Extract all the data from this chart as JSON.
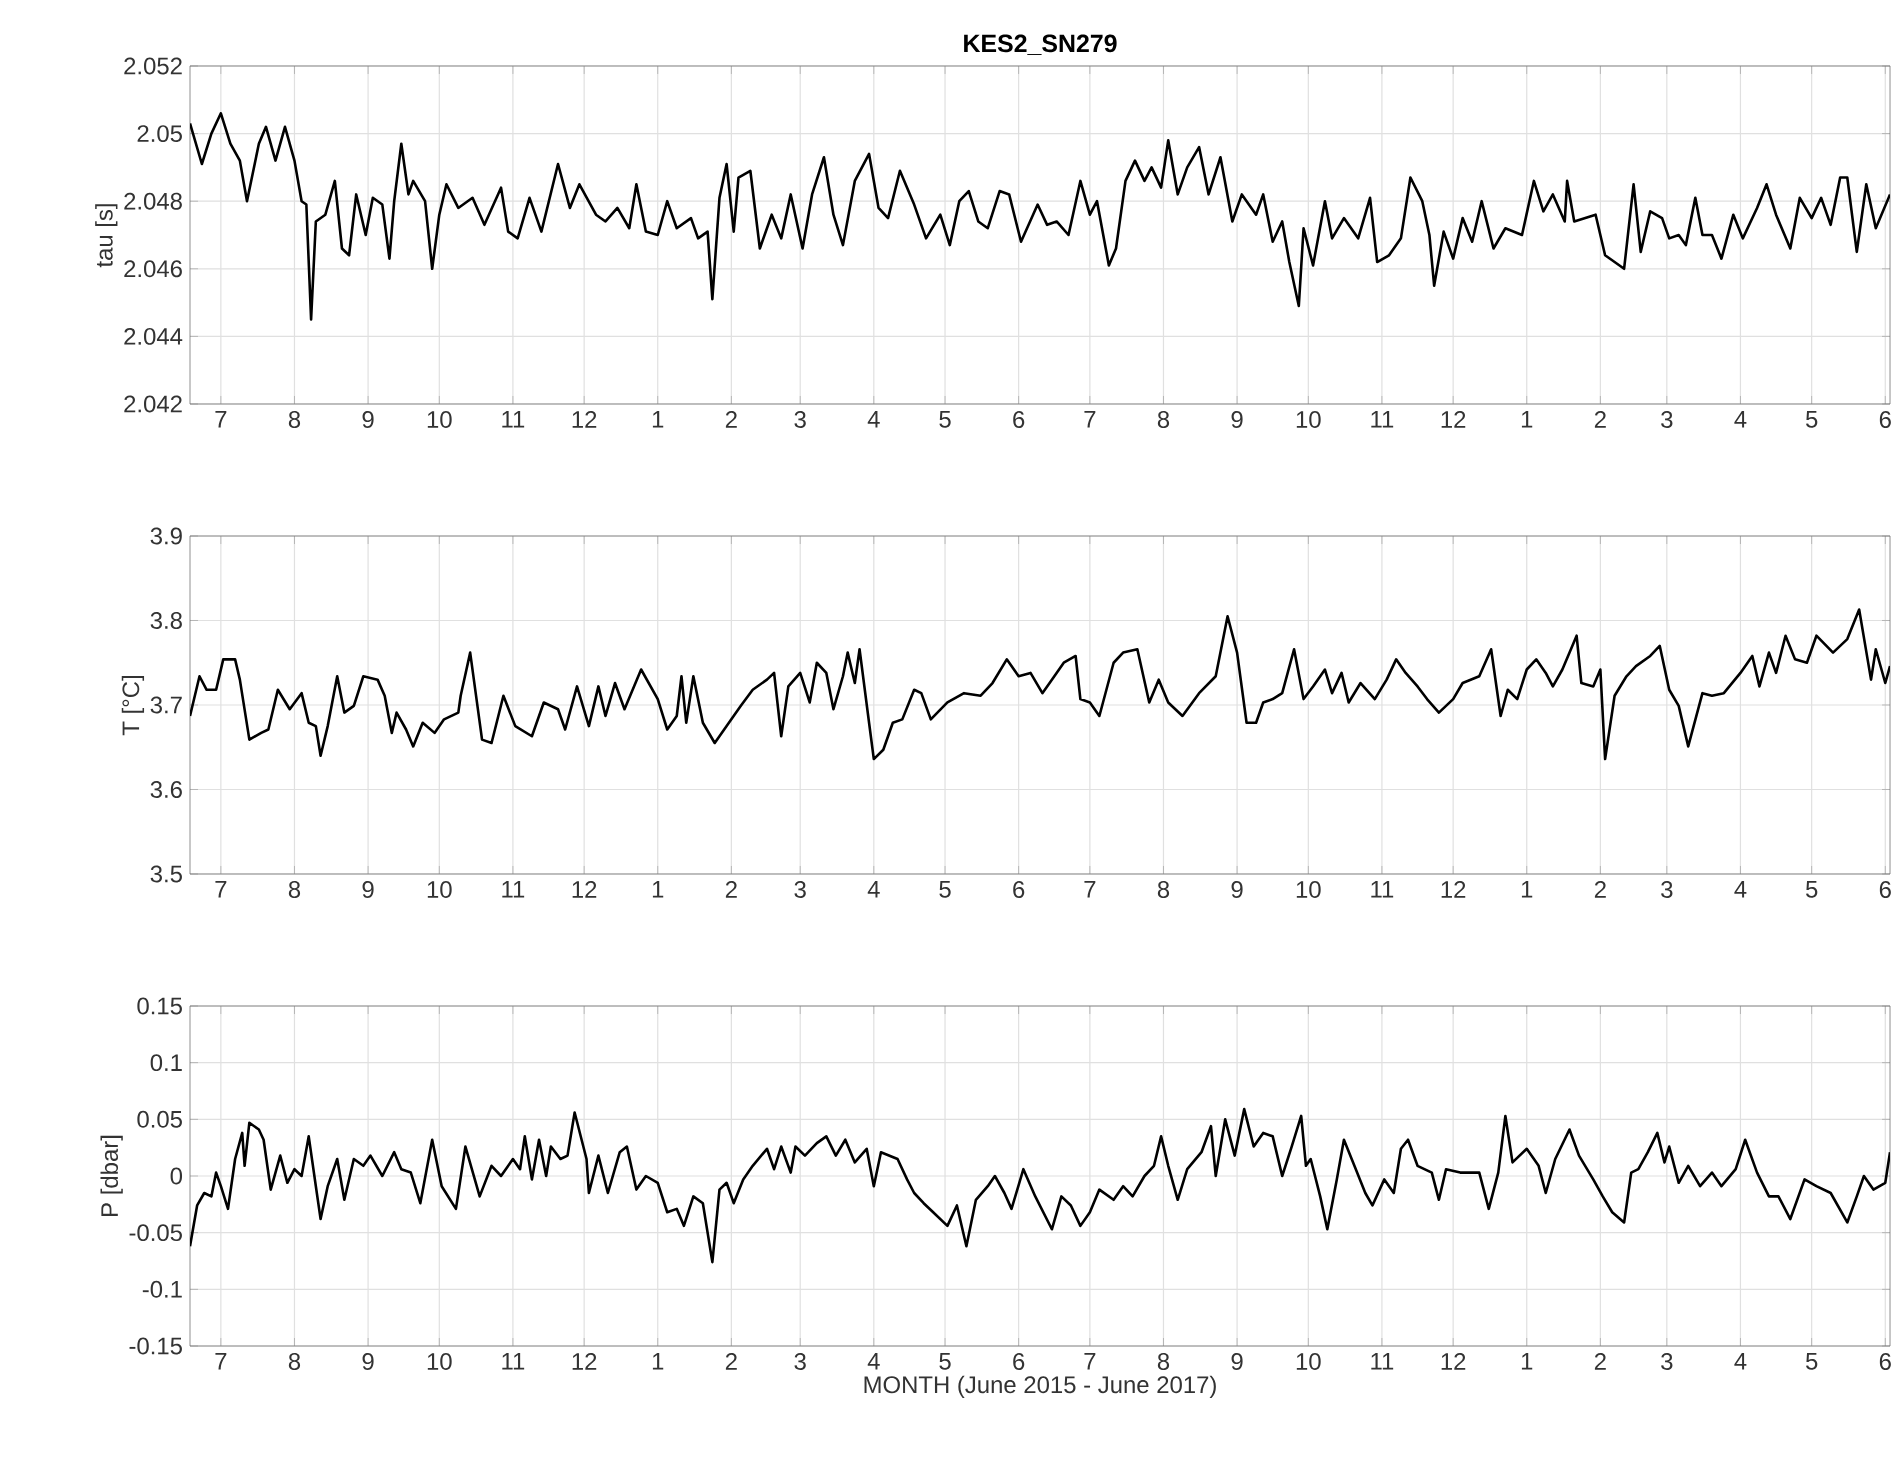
{
  "chart_data": [
    {
      "type": "line",
      "title": "KES2_SN279",
      "ylabel": "tau [s]",
      "grid": true,
      "x": [
        "2015-06-18",
        "2015-06-23",
        "2015-06-27",
        "2015-07-01",
        "2015-07-05",
        "2015-07-09",
        "2015-07-12",
        "2015-07-17",
        "2015-07-20",
        "2015-07-24",
        "2015-07-28",
        "2015-08-01",
        "2015-08-04",
        "2015-08-06",
        "2015-08-08",
        "2015-08-10",
        "2015-08-14",
        "2015-08-18",
        "2015-08-21",
        "2015-08-24",
        "2015-08-27",
        "2015-08-31",
        "2015-09-03",
        "2015-09-07",
        "2015-09-10",
        "2015-09-12",
        "2015-09-15",
        "2015-09-18",
        "2015-09-20",
        "2015-09-25",
        "2015-09-28",
        "2015-10-01",
        "2015-10-04",
        "2015-10-09",
        "2015-10-15",
        "2015-10-20",
        "2015-10-27",
        "2015-10-30",
        "2015-11-03",
        "2015-11-08",
        "2015-11-13",
        "2015-11-20",
        "2015-11-25",
        "2015-11-29",
        "2015-12-06",
        "2015-12-10",
        "2015-12-15",
        "2015-12-20",
        "2015-12-23",
        "2015-12-27",
        "2016-01-01",
        "2016-01-05",
        "2016-01-09",
        "2016-01-15",
        "2016-01-18",
        "2016-01-22",
        "2016-01-24",
        "2016-01-27",
        "2016-01-30",
        "2016-02-02",
        "2016-02-04",
        "2016-02-09",
        "2016-02-13",
        "2016-02-18",
        "2016-02-22",
        "2016-02-26",
        "2016-03-02",
        "2016-03-06",
        "2016-03-11",
        "2016-03-15",
        "2016-03-19",
        "2016-03-24",
        "2016-03-30",
        "2016-04-03",
        "2016-04-07",
        "2016-04-12",
        "2016-04-18",
        "2016-04-23",
        "2016-04-29",
        "2016-05-03",
        "2016-05-07",
        "2016-05-11",
        "2016-05-15",
        "2016-05-19",
        "2016-05-24",
        "2016-05-28",
        "2016-06-02",
        "2016-06-09",
        "2016-06-13",
        "2016-06-17",
        "2016-06-22",
        "2016-06-27",
        "2016-07-01",
        "2016-07-04",
        "2016-07-09",
        "2016-07-12",
        "2016-07-16",
        "2016-07-20",
        "2016-07-24",
        "2016-07-27",
        "2016-07-31",
        "2016-08-03",
        "2016-08-07",
        "2016-08-11",
        "2016-08-16",
        "2016-08-20",
        "2016-08-25",
        "2016-08-30",
        "2016-09-03",
        "2016-09-09",
        "2016-09-12",
        "2016-09-16",
        "2016-09-20",
        "2016-09-23",
        "2016-09-27",
        "2016-09-29",
        "2016-10-03",
        "2016-10-08",
        "2016-10-11",
        "2016-10-16",
        "2016-10-22",
        "2016-10-27",
        "2016-10-30",
        "2016-11-04",
        "2016-11-09",
        "2016-11-13",
        "2016-11-18",
        "2016-11-21",
        "2016-11-23",
        "2016-11-27",
        "2016-12-01",
        "2016-12-05",
        "2016-12-09",
        "2016-12-13",
        "2016-12-18",
        "2016-12-23",
        "2016-12-30",
        "2017-01-04",
        "2017-01-08",
        "2017-01-12",
        "2017-01-17",
        "2017-01-18",
        "2017-01-21",
        "2017-01-30",
        "2017-02-03",
        "2017-02-07",
        "2017-02-11",
        "2017-02-15",
        "2017-02-18",
        "2017-02-22",
        "2017-02-27",
        "2017-03-02",
        "2017-03-06",
        "2017-03-09",
        "2017-03-13",
        "2017-03-16",
        "2017-03-20",
        "2017-03-24",
        "2017-03-29",
        "2017-04-02",
        "2017-04-08",
        "2017-04-12",
        "2017-04-16",
        "2017-04-22",
        "2017-04-26",
        "2017-05-01",
        "2017-05-05",
        "2017-05-09",
        "2017-05-13",
        "2017-05-16",
        "2017-05-20",
        "2017-05-24",
        "2017-05-28",
        "2017-06-03"
      ],
      "series": [
        {
          "color": "#000000",
          "values": [
            2.0503,
            2.0491,
            2.05,
            2.0506,
            2.0497,
            2.0492,
            2.048,
            2.0497,
            2.0502,
            2.0492,
            2.0502,
            2.0492,
            2.048,
            2.0479,
            2.0445,
            2.0474,
            2.0476,
            2.0486,
            2.0466,
            2.0464,
            2.0482,
            2.047,
            2.0481,
            2.0479,
            2.0463,
            2.048,
            2.0497,
            2.0482,
            2.0486,
            2.048,
            2.046,
            2.0476,
            2.0485,
            2.0478,
            2.0481,
            2.0473,
            2.0484,
            2.0471,
            2.0469,
            2.0481,
            2.0471,
            2.0491,
            2.0478,
            2.0485,
            2.0476,
            2.0474,
            2.0478,
            2.0472,
            2.0485,
            2.0471,
            2.047,
            2.048,
            2.0472,
            2.0475,
            2.0469,
            2.0471,
            2.0451,
            2.0481,
            2.0491,
            2.0471,
            2.0487,
            2.0489,
            2.0466,
            2.0476,
            2.0469,
            2.0482,
            2.0466,
            2.0482,
            2.0493,
            2.0476,
            2.0467,
            2.0486,
            2.0494,
            2.0478,
            2.0475,
            2.0489,
            2.0479,
            2.0469,
            2.0476,
            2.0467,
            2.048,
            2.0483,
            2.0474,
            2.0472,
            2.0483,
            2.0482,
            2.0468,
            2.0479,
            2.0473,
            2.0474,
            2.047,
            2.0486,
            2.0476,
            2.048,
            2.0461,
            2.0466,
            2.0486,
            2.0492,
            2.0486,
            2.049,
            2.0484,
            2.0498,
            2.0482,
            2.049,
            2.0496,
            2.0482,
            2.0493,
            2.0474,
            2.0482,
            2.0476,
            2.0482,
            2.0468,
            2.0474,
            2.0462,
            2.0449,
            2.0472,
            2.0461,
            2.048,
            2.0469,
            2.0475,
            2.0469,
            2.0481,
            2.0462,
            2.0464,
            2.0469,
            2.0487,
            2.048,
            2.047,
            2.0455,
            2.0471,
            2.0463,
            2.0475,
            2.0468,
            2.048,
            2.0466,
            2.0472,
            2.047,
            2.0486,
            2.0477,
            2.0482,
            2.0474,
            2.0486,
            2.0474,
            2.0476,
            2.0464,
            2.0462,
            2.046,
            2.0485,
            2.0465,
            2.0477,
            2.0475,
            2.0469,
            2.047,
            2.0467,
            2.0481,
            2.047,
            2.047,
            2.0463,
            2.0476,
            2.0469,
            2.0478,
            2.0485,
            2.0476,
            2.0466,
            2.0481,
            2.0475,
            2.0481,
            2.0473,
            2.0487,
            2.0487,
            2.0465,
            2.0485,
            2.0472,
            2.0482
          ]
        }
      ],
      "xlim": [
        "2015-06-18",
        "2017-06-03"
      ],
      "ylim": [
        2.042,
        2.052
      ],
      "yticks": [
        2.042,
        2.044,
        2.046,
        2.048,
        2.05,
        2.052
      ],
      "xticks": [
        {
          "value": "2015-07-01",
          "label": "7"
        },
        {
          "value": "2015-08-01",
          "label": "8"
        },
        {
          "value": "2015-09-01",
          "label": "9"
        },
        {
          "value": "2015-10-01",
          "label": "10"
        },
        {
          "value": "2015-11-01",
          "label": "11"
        },
        {
          "value": "2015-12-01",
          "label": "12"
        },
        {
          "value": "2016-01-01",
          "label": "1"
        },
        {
          "value": "2016-02-01",
          "label": "2"
        },
        {
          "value": "2016-03-01",
          "label": "3"
        },
        {
          "value": "2016-04-01",
          "label": "4"
        },
        {
          "value": "2016-05-01",
          "label": "5"
        },
        {
          "value": "2016-06-01",
          "label": "6"
        },
        {
          "value": "2016-07-01",
          "label": "7"
        },
        {
          "value": "2016-08-01",
          "label": "8"
        },
        {
          "value": "2016-09-01",
          "label": "9"
        },
        {
          "value": "2016-10-01",
          "label": "10"
        },
        {
          "value": "2016-11-01",
          "label": "11"
        },
        {
          "value": "2016-12-01",
          "label": "12"
        },
        {
          "value": "2017-01-01",
          "label": "1"
        },
        {
          "value": "2017-02-01",
          "label": "2"
        },
        {
          "value": "2017-03-01",
          "label": "3"
        },
        {
          "value": "2017-04-01",
          "label": "4"
        },
        {
          "value": "2017-05-01",
          "label": "5"
        },
        {
          "value": "2017-06-01",
          "label": "6"
        }
      ]
    },
    {
      "type": "line",
      "ylabel": "T [°C]",
      "grid": true,
      "x": [
        "2015-06-18",
        "2015-06-22",
        "2015-06-25",
        "2015-06-29",
        "2015-07-02",
        "2015-07-07",
        "2015-07-09",
        "2015-07-13",
        "2015-07-18",
        "2015-07-21",
        "2015-07-25",
        "2015-07-30",
        "2015-08-04",
        "2015-08-07",
        "2015-08-10",
        "2015-08-12",
        "2015-08-15",
        "2015-08-19",
        "2015-08-22",
        "2015-08-26",
        "2015-08-30",
        "2015-09-05",
        "2015-09-08",
        "2015-09-11",
        "2015-09-13",
        "2015-09-17",
        "2015-09-20",
        "2015-09-24",
        "2015-09-29",
        "2015-10-03",
        "2015-10-09",
        "2015-10-10",
        "2015-10-14",
        "2015-10-19",
        "2015-10-23",
        "2015-10-28",
        "2015-11-02",
        "2015-11-09",
        "2015-11-14",
        "2015-11-20",
        "2015-11-23",
        "2015-11-28",
        "2015-12-03",
        "2015-12-07",
        "2015-12-10",
        "2015-12-14",
        "2015-12-18",
        "2015-12-25",
        "2016-01-01",
        "2016-01-05",
        "2016-01-09",
        "2016-01-11",
        "2016-01-13",
        "2016-01-16",
        "2016-01-20",
        "2016-01-25",
        "2016-02-01",
        "2016-02-05",
        "2016-02-10",
        "2016-02-16",
        "2016-02-19",
        "2016-02-22",
        "2016-02-25",
        "2016-03-01",
        "2016-03-05",
        "2016-03-08",
        "2016-03-12",
        "2016-03-15",
        "2016-03-19",
        "2016-03-21",
        "2016-03-24",
        "2016-03-26",
        "2016-03-30",
        "2016-04-01",
        "2016-04-05",
        "2016-04-09",
        "2016-04-13",
        "2016-04-18",
        "2016-04-21",
        "2016-04-25",
        "2016-05-02",
        "2016-05-09",
        "2016-05-16",
        "2016-05-21",
        "2016-05-27",
        "2016-06-01",
        "2016-06-06",
        "2016-06-11",
        "2016-06-15",
        "2016-06-20",
        "2016-06-25",
        "2016-06-27",
        "2016-07-01",
        "2016-07-05",
        "2016-07-11",
        "2016-07-15",
        "2016-07-21",
        "2016-07-26",
        "2016-07-30",
        "2016-08-03",
        "2016-08-09",
        "2016-08-16",
        "2016-08-23",
        "2016-08-28",
        "2016-09-01",
        "2016-09-05",
        "2016-09-09",
        "2016-09-12",
        "2016-09-16",
        "2016-09-20",
        "2016-09-25",
        "2016-09-29",
        "2016-10-03",
        "2016-10-08",
        "2016-10-11",
        "2016-10-15",
        "2016-10-18",
        "2016-10-23",
        "2016-10-29",
        "2016-11-03",
        "2016-11-07",
        "2016-11-11",
        "2016-11-16",
        "2016-11-20",
        "2016-11-25",
        "2016-12-01",
        "2016-12-05",
        "2016-12-12",
        "2016-12-17",
        "2016-12-21",
        "2016-12-24",
        "2016-12-28",
        "2017-01-01",
        "2017-01-05",
        "2017-01-09",
        "2017-01-12",
        "2017-01-16",
        "2017-01-22",
        "2017-01-24",
        "2017-01-29",
        "2017-02-01",
        "2017-02-03",
        "2017-02-07",
        "2017-02-12",
        "2017-02-16",
        "2017-02-22",
        "2017-02-26",
        "2017-03-02",
        "2017-03-06",
        "2017-03-10",
        "2017-03-16",
        "2017-03-20",
        "2017-03-25",
        "2017-04-01",
        "2017-04-06",
        "2017-04-09",
        "2017-04-13",
        "2017-04-16",
        "2017-04-20",
        "2017-04-24",
        "2017-04-29",
        "2017-05-03",
        "2017-05-10",
        "2017-05-16",
        "2017-05-21",
        "2017-05-26",
        "2017-05-28",
        "2017-06-01",
        "2017-06-03"
      ],
      "series": [
        {
          "color": "#000000",
          "values": [
            3.687,
            3.734,
            3.718,
            3.718,
            3.754,
            3.754,
            3.73,
            3.659,
            3.667,
            3.671,
            3.718,
            3.695,
            3.714,
            3.679,
            3.675,
            3.64,
            3.675,
            3.734,
            3.691,
            3.699,
            3.734,
            3.73,
            3.711,
            3.667,
            3.691,
            3.671,
            3.651,
            3.679,
            3.667,
            3.683,
            3.691,
            3.711,
            3.762,
            3.659,
            3.655,
            3.711,
            3.675,
            3.663,
            3.703,
            3.695,
            3.671,
            3.722,
            3.675,
            3.722,
            3.687,
            3.726,
            3.695,
            3.742,
            3.707,
            3.671,
            3.687,
            3.734,
            3.679,
            3.734,
            3.679,
            3.655,
            3.683,
            3.699,
            3.718,
            3.73,
            3.738,
            3.663,
            3.722,
            3.738,
            3.703,
            3.75,
            3.738,
            3.695,
            3.734,
            3.762,
            3.726,
            3.766,
            3.679,
            3.636,
            3.647,
            3.679,
            3.683,
            3.718,
            3.714,
            3.683,
            3.703,
            3.714,
            3.711,
            3.726,
            3.754,
            3.734,
            3.738,
            3.714,
            3.73,
            3.75,
            3.758,
            3.707,
            3.703,
            3.687,
            3.75,
            3.762,
            3.766,
            3.703,
            3.73,
            3.703,
            3.687,
            3.714,
            3.734,
            3.805,
            3.762,
            3.679,
            3.679,
            3.703,
            3.707,
            3.714,
            3.766,
            3.707,
            3.722,
            3.742,
            3.714,
            3.738,
            3.703,
            3.726,
            3.707,
            3.73,
            3.754,
            3.738,
            3.722,
            3.707,
            3.691,
            3.707,
            3.726,
            3.734,
            3.766,
            3.687,
            3.718,
            3.707,
            3.742,
            3.754,
            3.738,
            3.722,
            3.742,
            3.782,
            3.726,
            3.722,
            3.742,
            3.636,
            3.711,
            3.734,
            3.746,
            3.758,
            3.77,
            3.718,
            3.699,
            3.651,
            3.714,
            3.711,
            3.714,
            3.738,
            3.758,
            3.722,
            3.762,
            3.738,
            3.782,
            3.754,
            3.75,
            3.782,
            3.762,
            3.778,
            3.813,
            3.73,
            3.766,
            3.726,
            3.746
          ]
        }
      ],
      "xlim": [
        "2015-06-18",
        "2017-06-03"
      ],
      "ylim": [
        3.5,
        3.9
      ],
      "yticks": [
        3.5,
        3.6,
        3.7,
        3.8,
        3.9
      ],
      "xticks": [
        {
          "value": "2015-07-01",
          "label": "7"
        },
        {
          "value": "2015-08-01",
          "label": "8"
        },
        {
          "value": "2015-09-01",
          "label": "9"
        },
        {
          "value": "2015-10-01",
          "label": "10"
        },
        {
          "value": "2015-11-01",
          "label": "11"
        },
        {
          "value": "2015-12-01",
          "label": "12"
        },
        {
          "value": "2016-01-01",
          "label": "1"
        },
        {
          "value": "2016-02-01",
          "label": "2"
        },
        {
          "value": "2016-03-01",
          "label": "3"
        },
        {
          "value": "2016-04-01",
          "label": "4"
        },
        {
          "value": "2016-05-01",
          "label": "5"
        },
        {
          "value": "2016-06-01",
          "label": "6"
        },
        {
          "value": "2016-07-01",
          "label": "7"
        },
        {
          "value": "2016-08-01",
          "label": "8"
        },
        {
          "value": "2016-09-01",
          "label": "9"
        },
        {
          "value": "2016-10-01",
          "label": "10"
        },
        {
          "value": "2016-11-01",
          "label": "11"
        },
        {
          "value": "2016-12-01",
          "label": "12"
        },
        {
          "value": "2017-01-01",
          "label": "1"
        },
        {
          "value": "2017-02-01",
          "label": "2"
        },
        {
          "value": "2017-03-01",
          "label": "3"
        },
        {
          "value": "2017-04-01",
          "label": "4"
        },
        {
          "value": "2017-05-01",
          "label": "5"
        },
        {
          "value": "2017-06-01",
          "label": "6"
        }
      ]
    },
    {
      "type": "line",
      "ylabel": "P [dbar]",
      "xlabel": "MONTH (June 2015 - June 2017)",
      "grid": true,
      "x": [
        "2015-06-18",
        "2015-06-21",
        "2015-06-24",
        "2015-06-27",
        "2015-06-29",
        "2015-07-01",
        "2015-07-04",
        "2015-07-07",
        "2015-07-10",
        "2015-07-11",
        "2015-07-13",
        "2015-07-17",
        "2015-07-19",
        "2015-07-22",
        "2015-07-26",
        "2015-07-29",
        "2015-08-01",
        "2015-08-04",
        "2015-08-07",
        "2015-08-10",
        "2015-08-12",
        "2015-08-15",
        "2015-08-19",
        "2015-08-22",
        "2015-08-26",
        "2015-08-30",
        "2015-09-02",
        "2015-09-07",
        "2015-09-12",
        "2015-09-15",
        "2015-09-19",
        "2015-09-23",
        "2015-09-28",
        "2015-10-02",
        "2015-10-08",
        "2015-10-12",
        "2015-10-18",
        "2015-10-23",
        "2015-10-27",
        "2015-11-01",
        "2015-11-04",
        "2015-11-06",
        "2015-11-09",
        "2015-11-12",
        "2015-11-15",
        "2015-11-17",
        "2015-11-21",
        "2015-11-24",
        "2015-11-27",
        "2015-12-02",
        "2015-12-03",
        "2015-12-07",
        "2015-12-11",
        "2015-12-16",
        "2015-12-19",
        "2015-12-23",
        "2015-12-27",
        "2016-01-01",
        "2016-01-05",
        "2016-01-09",
        "2016-01-12",
        "2016-01-16",
        "2016-01-20",
        "2016-01-24",
        "2016-01-27",
        "2016-01-30",
        "2016-02-02",
        "2016-02-06",
        "2016-02-10",
        "2016-02-16",
        "2016-02-19",
        "2016-02-22",
        "2016-02-26",
        "2016-02-28",
        "2016-03-03",
        "2016-03-08",
        "2016-03-12",
        "2016-03-16",
        "2016-03-20",
        "2016-03-24",
        "2016-03-29",
        "2016-04-01",
        "2016-04-04",
        "2016-04-11",
        "2016-04-15",
        "2016-04-18",
        "2016-04-22",
        "2016-04-26",
        "2016-05-02",
        "2016-05-06",
        "2016-05-10",
        "2016-05-14",
        "2016-05-19",
        "2016-05-22",
        "2016-05-26",
        "2016-05-29",
        "2016-06-03",
        "2016-06-08",
        "2016-06-15",
        "2016-06-19",
        "2016-06-23",
        "2016-06-27",
        "2016-07-01",
        "2016-07-05",
        "2016-07-11",
        "2016-07-15",
        "2016-07-19",
        "2016-07-24",
        "2016-07-28",
        "2016-07-31",
        "2016-08-03",
        "2016-08-07",
        "2016-08-11",
        "2016-08-17",
        "2016-08-21",
        "2016-08-23",
        "2016-08-27",
        "2016-08-31",
        "2016-09-04",
        "2016-09-08",
        "2016-09-12",
        "2016-09-16",
        "2016-09-20",
        "2016-09-24",
        "2016-09-28",
        "2016-09-30",
        "2016-10-02",
        "2016-10-06",
        "2016-10-09",
        "2016-10-13",
        "2016-10-16",
        "2016-10-21",
        "2016-10-25",
        "2016-10-28",
        "2016-11-02",
        "2016-11-06",
        "2016-11-09",
        "2016-11-12",
        "2016-11-16",
        "2016-11-22",
        "2016-11-25",
        "2016-11-28",
        "2016-12-04",
        "2016-12-12",
        "2016-12-16",
        "2016-12-20",
        "2016-12-23",
        "2016-12-26",
        "2017-01-01",
        "2017-01-06",
        "2017-01-09",
        "2017-01-13",
        "2017-01-19",
        "2017-01-23",
        "2017-01-29",
        "2017-02-02",
        "2017-02-06",
        "2017-02-11",
        "2017-02-14",
        "2017-02-17",
        "2017-02-21",
        "2017-02-25",
        "2017-02-28",
        "2017-03-02",
        "2017-03-06",
        "2017-03-10",
        "2017-03-15",
        "2017-03-20",
        "2017-03-24",
        "2017-03-30",
        "2017-04-03",
        "2017-04-08",
        "2017-04-13",
        "2017-04-17",
        "2017-04-22",
        "2017-04-28",
        "2017-05-03",
        "2017-05-09",
        "2017-05-16",
        "2017-05-20",
        "2017-05-23",
        "2017-05-27",
        "2017-06-01",
        "2017-06-03"
      ],
      "series": [
        {
          "color": "#000000",
          "values": [
            -0.062,
            -0.026,
            -0.015,
            -0.018,
            0.003,
            -0.009,
            -0.029,
            0.015,
            0.038,
            0.009,
            0.047,
            0.041,
            0.032,
            -0.012,
            0.018,
            -0.006,
            0.006,
            0,
            0.035,
            -0.009,
            -0.038,
            -0.009,
            0.015,
            -0.021,
            0.015,
            0.009,
            0.018,
            0,
            0.021,
            0.006,
            0.003,
            -0.024,
            0.032,
            -0.009,
            -0.029,
            0.026,
            -0.018,
            0.009,
            0,
            0.015,
            0.006,
            0.035,
            -0.003,
            0.032,
            0,
            0.026,
            0.015,
            0.018,
            0.056,
            0.015,
            -0.015,
            0.018,
            -0.015,
            0.021,
            0.026,
            -0.012,
            0,
            -0.006,
            -0.032,
            -0.029,
            -0.044,
            -0.018,
            -0.024,
            -0.076,
            -0.012,
            -0.006,
            -0.024,
            -0.003,
            0.009,
            0.024,
            0.006,
            0.026,
            0.003,
            0.026,
            0.018,
            0.029,
            0.035,
            0.018,
            0.032,
            0.012,
            0.024,
            -0.009,
            0.021,
            0.015,
            -0.003,
            -0.015,
            -0.024,
            -0.032,
            -0.044,
            -0.026,
            -0.062,
            -0.021,
            -0.009,
            0,
            -0.015,
            -0.029,
            0.006,
            -0.018,
            -0.047,
            -0.018,
            -0.026,
            -0.044,
            -0.032,
            -0.012,
            -0.021,
            -0.009,
            -0.018,
            0,
            0.009,
            0.035,
            0.009,
            -0.021,
            0.006,
            0.021,
            0.044,
            0,
            0.05,
            0.018,
            0.059,
            0.026,
            0.038,
            0.035,
            0,
            0.026,
            0.053,
            0.009,
            0.015,
            -0.018,
            -0.047,
            -0.003,
            0.032,
            0.006,
            -0.015,
            -0.026,
            -0.003,
            -0.015,
            0.024,
            0.032,
            0.009,
            0.003,
            -0.021,
            0.006,
            0.003,
            0.003,
            -0.029,
            0.003,
            0.053,
            0.012,
            0.024,
            0.009,
            -0.015,
            0.015,
            0.041,
            0.018,
            -0.003,
            -0.018,
            -0.032,
            -0.041,
            0.003,
            0.006,
            0.021,
            0.038,
            0.012,
            0.026,
            -0.006,
            0.009,
            -0.009,
            0.003,
            -0.009,
            0.006,
            0.032,
            0.003,
            -0.018,
            -0.018,
            -0.038,
            -0.003,
            -0.009,
            -0.015,
            -0.041,
            -0.018,
            0,
            -0.012,
            -0.006,
            0.021
          ]
        }
      ],
      "xlim": [
        "2015-06-18",
        "2017-06-03"
      ],
      "ylim": [
        -0.15,
        0.15
      ],
      "yticks": [
        -0.15,
        -0.1,
        -0.05,
        0,
        0.05,
        0.1,
        0.15
      ],
      "xticks": [
        {
          "value": "2015-07-01",
          "label": "7"
        },
        {
          "value": "2015-08-01",
          "label": "8"
        },
        {
          "value": "2015-09-01",
          "label": "9"
        },
        {
          "value": "2015-10-01",
          "label": "10"
        },
        {
          "value": "2015-11-01",
          "label": "11"
        },
        {
          "value": "2015-12-01",
          "label": "12"
        },
        {
          "value": "2016-01-01",
          "label": "1"
        },
        {
          "value": "2016-02-01",
          "label": "2"
        },
        {
          "value": "2016-03-01",
          "label": "3"
        },
        {
          "value": "2016-04-01",
          "label": "4"
        },
        {
          "value": "2016-05-01",
          "label": "5"
        },
        {
          "value": "2016-06-01",
          "label": "6"
        },
        {
          "value": "2016-07-01",
          "label": "7"
        },
        {
          "value": "2016-08-01",
          "label": "8"
        },
        {
          "value": "2016-09-01",
          "label": "9"
        },
        {
          "value": "2016-10-01",
          "label": "10"
        },
        {
          "value": "2016-11-01",
          "label": "11"
        },
        {
          "value": "2016-12-01",
          "label": "12"
        },
        {
          "value": "2017-01-01",
          "label": "1"
        },
        {
          "value": "2017-02-01",
          "label": "2"
        },
        {
          "value": "2017-03-01",
          "label": "3"
        },
        {
          "value": "2017-04-01",
          "label": "4"
        },
        {
          "value": "2017-05-01",
          "label": "5"
        },
        {
          "value": "2017-06-01",
          "label": "6"
        }
      ]
    }
  ]
}
